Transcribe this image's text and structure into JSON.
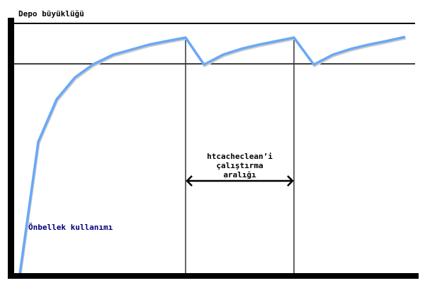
{
  "labels": {
    "y_axis": "Depo büyüklüğü",
    "curve": "Önbellek kullanımı",
    "interval_line1": "htcacheclean’i",
    "interval_line2": "çalıştırma",
    "interval_line3": "aralığı"
  },
  "colors": {
    "curve": "#6aa8f5",
    "axes": "#000000",
    "text_curve": "#00007a"
  }
}
